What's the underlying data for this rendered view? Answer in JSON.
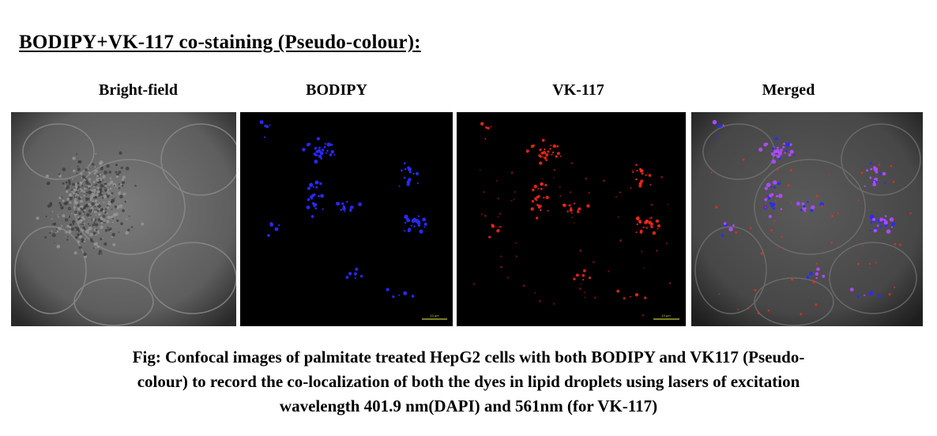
{
  "title": "BODIPY+VK-117 co-staining (Pseudo-colour):",
  "panels": [
    {
      "label": "Bright-field",
      "scale_bar": ""
    },
    {
      "label": "BODIPY",
      "scale_bar": "10 μm"
    },
    {
      "label": "VK-117",
      "scale_bar": "10 μm"
    },
    {
      "label": "Merged",
      "scale_bar": ""
    }
  ],
  "caption": {
    "line1": "Fig: Confocal images of palmitate treated HepG2 cells with both BODIPY and VK117 (Pseudo-",
    "line2": "colour) to record the  co-localization of both the dyes in lipid droplets using lasers of excitation",
    "line3": "wavelength 401.9 nm(DAPI) and 561nm (for VK-117)"
  },
  "colors": {
    "bodipy_channel": "#2a2aff",
    "vk117_channel": "#ff2a1a",
    "merged_overlap": "#b04aff",
    "brightfield_gray": "#6e6e6e",
    "scale_bar": "#c8c83a"
  }
}
